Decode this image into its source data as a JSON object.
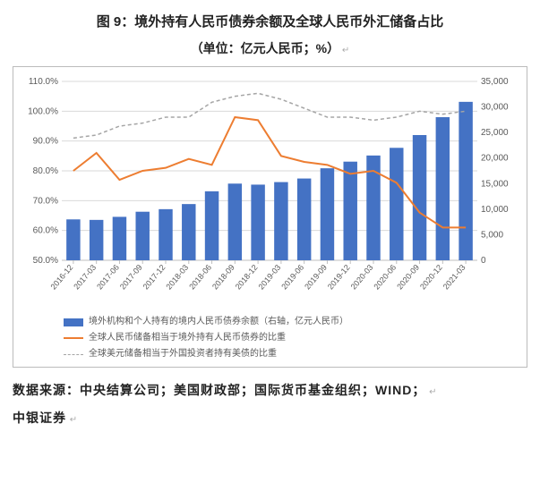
{
  "title": "图 9：境外持有人民币债券余额及全球人民币外汇储备占比",
  "subtitle": "（单位：亿元人民币；%）",
  "source_line1": "数据来源：中央结算公司；美国财政部；国际货币基金组织；WIND；",
  "source_line2": "中银证券",
  "chart": {
    "type": "combo-bar-line-dual-axis",
    "background_color": "#ffffff",
    "plot_border_color": "#bfbfbf",
    "gridline_color": "#d9d9d9",
    "categories": [
      "2016-12",
      "2017-03",
      "2017-06",
      "2017-09",
      "2017-12",
      "2018-03",
      "2018-06",
      "2018-09",
      "2018-12",
      "2019-03",
      "2019-06",
      "2019-09",
      "2019-12",
      "2020-03",
      "2020-06",
      "2020-09",
      "2020-12",
      "2021-03"
    ],
    "left_axis": {
      "label_suffix": "%",
      "min": 50,
      "max": 110,
      "tick_step": 10,
      "title_fontsize": 10
    },
    "right_axis": {
      "min": 0,
      "max": 35000,
      "tick_step": 5000,
      "title_fontsize": 10
    },
    "series_bar": {
      "name": "境外机构和个人持有的境内人民币债券余额（右轴，亿元人民币）",
      "color": "#4472c4",
      "bar_width": 0.6,
      "values": [
        8000,
        7900,
        8500,
        9500,
        10000,
        11000,
        13500,
        15000,
        14800,
        15300,
        16000,
        18000,
        19300,
        20500,
        22000,
        24500,
        28000,
        31000
      ]
    },
    "series_line1": {
      "name": "全球人民币储备相当于境外持有人民币债券的比重",
      "color": "#ed7d31",
      "line_width": 2,
      "marker": "none",
      "values": [
        80,
        86,
        77,
        80,
        81,
        84,
        82,
        98,
        97,
        85,
        83,
        82,
        79,
        80,
        76,
        66,
        61,
        61
      ]
    },
    "series_line2": {
      "name": "全球美元储备相当于外国投资者持有美债的比重",
      "color": "#a5a5a5",
      "line_width": 1.5,
      "dash": "4,3",
      "marker": "none",
      "values": [
        91,
        92,
        95,
        96,
        98,
        98,
        103,
        105,
        106,
        104,
        101,
        98,
        98,
        97,
        98,
        100,
        99,
        100
      ]
    },
    "x_label_rotation": -50,
    "x_label_fontsize": 9,
    "axis_label_fontsize": 10,
    "axis_label_color": "#595959"
  },
  "legend": {
    "position": "bottom-left",
    "fontsize": 10,
    "item_bar": "境外机构和个人持有的境内人民币债券余额（右轴，亿元人民币）",
    "item_line1": "全球人民币储备相当于境外持有人民币债券的比重",
    "item_line2": "全球美元储备相当于外国投资者持有美债的比重"
  }
}
